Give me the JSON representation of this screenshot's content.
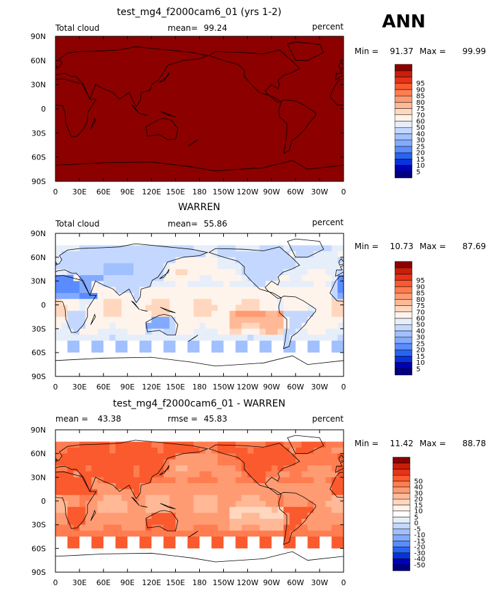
{
  "season": "ANN",
  "colors": {
    "cloud_scale": [
      "#000080",
      "#0000b4",
      "#0a32dc",
      "#2864f0",
      "#5a8cff",
      "#82aaff",
      "#a0c0ff",
      "#c4d8ff",
      "#e6eefa",
      "#fff4ec",
      "#ffd7be",
      "#ffb996",
      "#ff9b73",
      "#ff7d50",
      "#fa5a2d",
      "#e63219",
      "#c81e0a",
      "#8c0000"
    ],
    "diff_scale": [
      "#000080",
      "#0000b4",
      "#0a32dc",
      "#2864f0",
      "#5a8cff",
      "#82aaff",
      "#a0c0ff",
      "#c4d8ff",
      "#e6eefa",
      "#ffffff",
      "#fff4ec",
      "#ffd7be",
      "#ffb996",
      "#ff9b73",
      "#ff7d50",
      "#fa5a2d",
      "#e63219",
      "#c81e0a",
      "#8c0000"
    ]
  },
  "chart_data": [
    {
      "type": "heatmap",
      "title": "test_mg4_f2000cam6_01 (yrs 1-2)",
      "left_label": "Total cloud",
      "stat_label": "mean=",
      "stat_value": "99.24",
      "units": "percent",
      "min_label": "Min =",
      "min_value": "91.37",
      "max_label": "Max =",
      "max_value": "99.99",
      "colorbar_labels": [
        "5",
        "10",
        "15",
        "20",
        "25",
        "30",
        "40",
        "50",
        "60",
        "70",
        "75",
        "80",
        "85",
        "90",
        "95"
      ],
      "field": "uniform_high",
      "lat_ticks": [
        "90N",
        "60N",
        "30N",
        "0",
        "30S",
        "60S",
        "90S"
      ],
      "lon_ticks": [
        "0",
        "30E",
        "60E",
        "90E",
        "120E",
        "150E",
        "180",
        "150W",
        "120W",
        "90W",
        "60W",
        "30W",
        "0"
      ]
    },
    {
      "type": "heatmap",
      "title": "WARREN",
      "left_label": "Total cloud",
      "stat_label": "mean=",
      "stat_value": "55.86",
      "units": "percent",
      "min_label": "Min =",
      "min_value": "10.73",
      "max_label": "Max =",
      "max_value": "87.69",
      "colorbar_labels": [
        "5",
        "10",
        "15",
        "20",
        "25",
        "30",
        "40",
        "50",
        "60",
        "70",
        "75",
        "80",
        "85",
        "90",
        "95"
      ],
      "field": "observed",
      "lat_ticks": [
        "90N",
        "60N",
        "30N",
        "0",
        "30S",
        "60S",
        "90S"
      ],
      "lon_ticks": [
        "0",
        "30E",
        "60E",
        "90E",
        "120E",
        "150E",
        "180",
        "150W",
        "120W",
        "90W",
        "60W",
        "30W",
        "0"
      ]
    },
    {
      "type": "heatmap",
      "title": "test_mg4_f2000cam6_01 - WARREN",
      "left_label": "mean =",
      "left_value": "43.38",
      "stat_label": "rmse =",
      "stat_value": "45.83",
      "units": "percent",
      "min_label": "Min =",
      "min_value": "11.42",
      "max_label": "Max =",
      "max_value": "88.78",
      "colorbar_labels": [
        "-50",
        "-40",
        "-30",
        "-20",
        "-15",
        "-10",
        "-5",
        "0",
        "5",
        "10",
        "15",
        "20",
        "30",
        "40",
        "50"
      ],
      "field": "difference",
      "lat_ticks": [
        "90N",
        "60N",
        "30N",
        "0",
        "30S",
        "60S",
        "90S"
      ],
      "lon_ticks": [
        "0",
        "30E",
        "60E",
        "90E",
        "120E",
        "150E",
        "180",
        "150W",
        "120W",
        "90W",
        "60W",
        "30W",
        "0"
      ]
    }
  ]
}
